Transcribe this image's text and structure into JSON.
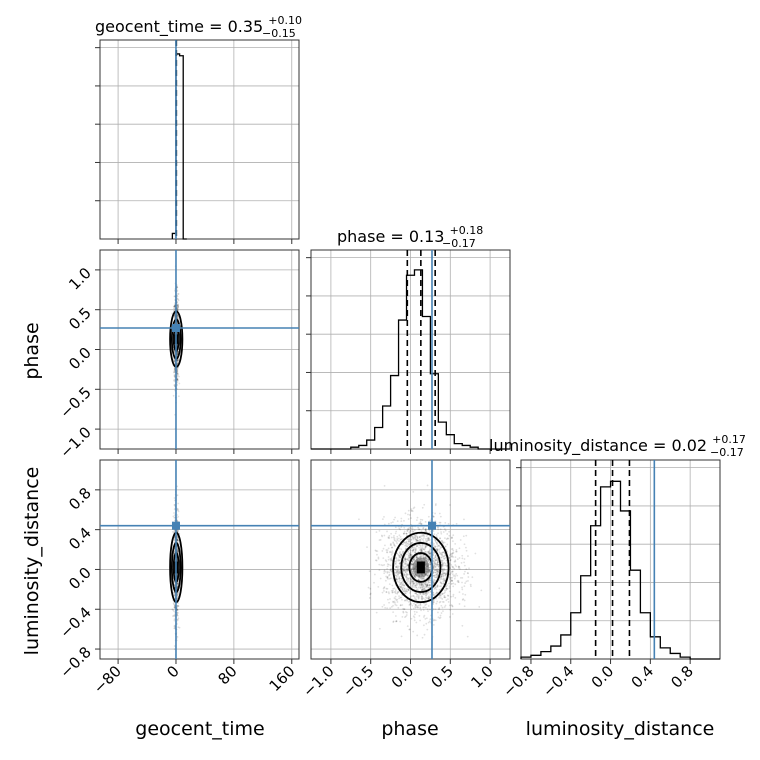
{
  "chart_data": {
    "type": "corner",
    "parameters": [
      "geocent_time",
      "phase",
      "luminosity_distance"
    ],
    "axis_labels": {
      "x": [
        "geocent_time",
        "phase",
        "luminosity_distance"
      ],
      "y": [
        "phase",
        "luminosity_distance"
      ]
    },
    "ranges": {
      "geocent_time": [
        -105,
        170
      ],
      "phase": [
        -1.25,
        1.25
      ],
      "luminosity_distance": [
        -0.9,
        1.1
      ]
    },
    "ticks": {
      "geocent_time": [
        "−80",
        "0",
        "80",
        "160"
      ],
      "phase": [
        "−1.0",
        "−0.5",
        "0.0",
        "0.5",
        "1.0"
      ],
      "luminosity_distance": [
        "−0.8",
        "−0.4",
        "0.0",
        "0.4",
        "0.8"
      ]
    },
    "tick_values": {
      "geocent_time": [
        -80,
        0,
        80,
        160
      ],
      "phase": [
        -1.0,
        -0.5,
        0.0,
        0.5,
        1.0
      ],
      "luminosity_distance": [
        -0.8,
        -0.4,
        0.0,
        0.4,
        0.8
      ]
    },
    "titles": [
      {
        "param": "geocent_time",
        "main": "geocent_time = 0.35",
        "sup": "+0.10",
        "sub": "−0.15"
      },
      {
        "param": "phase",
        "main": "phase = 0.13",
        "sup": "+0.18",
        "sub": "−0.17"
      },
      {
        "param": "luminosity_distance",
        "main": "luminosity_distance = 0.02",
        "sup": "+0.17",
        "sub": "−0.17"
      }
    ],
    "truths": {
      "geocent_time": 0.0,
      "phase": 0.27,
      "luminosity_distance": 0.44
    },
    "quantiles": {
      "geocent_time": [
        0.2,
        0.35,
        0.45
      ],
      "phase": [
        -0.04,
        0.13,
        0.31
      ],
      "luminosity_distance": [
        -0.15,
        0.02,
        0.19
      ]
    },
    "histograms": {
      "geocent_time": {
        "edges": [
          -5,
          0,
          5,
          10,
          15
        ],
        "counts": [
          0.03,
          1.0,
          0.99,
          0.0
        ]
      },
      "phase": {
        "edges": [
          -1.25,
          -1.15,
          -1.05,
          -0.95,
          -0.85,
          -0.75,
          -0.65,
          -0.55,
          -0.45,
          -0.35,
          -0.25,
          -0.15,
          -0.05,
          0.05,
          0.15,
          0.25,
          0.35,
          0.45,
          0.55,
          0.65,
          0.75,
          0.85,
          0.95,
          1.05,
          1.15,
          1.25
        ],
        "counts": [
          0,
          0,
          0,
          0,
          0,
          0.01,
          0.02,
          0.05,
          0.12,
          0.24,
          0.41,
          0.72,
          0.97,
          1.0,
          0.74,
          0.42,
          0.15,
          0.08,
          0.03,
          0.02,
          0.01,
          0,
          0,
          0,
          0
        ]
      },
      "luminosity_distance": {
        "edges": [
          -0.9,
          -0.8,
          -0.7,
          -0.6,
          -0.5,
          -0.4,
          -0.3,
          -0.2,
          -0.1,
          0.0,
          0.1,
          0.2,
          0.3,
          0.4,
          0.5,
          0.6,
          0.7,
          0.8,
          0.9,
          1.0,
          1.1
        ],
        "counts": [
          0.01,
          0.02,
          0.04,
          0.07,
          0.13,
          0.25,
          0.45,
          0.72,
          0.93,
          0.96,
          0.8,
          0.48,
          0.25,
          0.12,
          0.06,
          0.03,
          0.01,
          0,
          0,
          0
        ]
      }
    },
    "contours_2d": [
      {
        "x": "phase",
        "y": "luminosity_distance",
        "center": [
          0.13,
          0.02
        ],
        "sigmas": [
          0.17,
          0.17
        ]
      },
      {
        "x": "geocent_time",
        "y": "phase",
        "center": [
          0.35,
          0.13
        ],
        "sigmas": [
          2.0,
          0.17
        ]
      },
      {
        "x": "geocent_time",
        "y": "luminosity_distance",
        "center": [
          0.35,
          0.02
        ],
        "sigmas": [
          2.0,
          0.17
        ]
      }
    ],
    "grid": true,
    "colors": {
      "truth": "#4682b4",
      "samples": "#000000",
      "grid": "#b0b0b0"
    }
  }
}
